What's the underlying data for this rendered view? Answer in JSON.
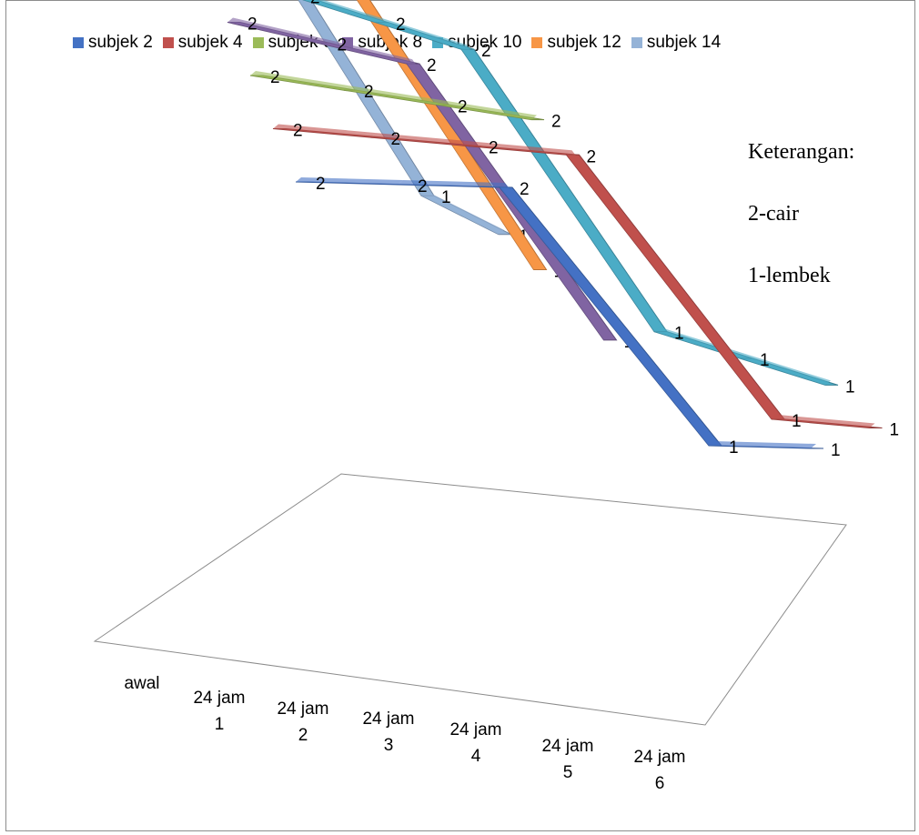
{
  "notes": {
    "title": "Keterangan:",
    "line1": "2-cair",
    "line2": "1-lembek"
  },
  "chart_data": {
    "type": "line",
    "style": "3d-line",
    "categories": [
      "awal",
      "24 jam 1",
      "24 jam 2",
      "24 jam 3",
      "24 jam 4",
      "24 jam 5",
      "24 jam 6"
    ],
    "series": [
      {
        "name": "subjek 2",
        "color": "#4472c4",
        "values": [
          2,
          2,
          2,
          1,
          1,
          null,
          null
        ]
      },
      {
        "name": "subjek 4",
        "color": "#c0504d",
        "values": [
          2,
          2,
          2,
          2,
          1,
          1,
          null
        ]
      },
      {
        "name": "subjek 6",
        "color": "#9bbb59",
        "values": [
          2,
          2,
          2,
          2,
          null,
          null,
          null
        ]
      },
      {
        "name": "subjek 8",
        "color": "#8064a2",
        "values": [
          2,
          2,
          2,
          1,
          null,
          null,
          null
        ]
      },
      {
        "name": "subjek 10",
        "color": "#4bacc6",
        "values": [
          2,
          2,
          2,
          2,
          1,
          1,
          1
        ]
      },
      {
        "name": "subjek 12",
        "color": "#f79646",
        "values": [
          2,
          2,
          2,
          1,
          null,
          null,
          null
        ]
      },
      {
        "name": "subjek 14",
        "color": "#95b3d7",
        "values": [
          2,
          2,
          1,
          1,
          null,
          null,
          null
        ]
      }
    ],
    "legend_position": "top",
    "gridlines": false,
    "show_data_labels": true
  }
}
